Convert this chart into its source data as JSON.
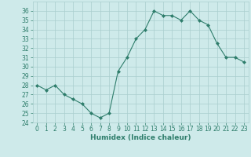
{
  "x": [
    0,
    1,
    2,
    3,
    4,
    5,
    6,
    7,
    8,
    9,
    10,
    11,
    12,
    13,
    14,
    15,
    16,
    17,
    18,
    19,
    20,
    21,
    22,
    23
  ],
  "y": [
    28,
    27.5,
    28,
    27,
    26.5,
    26,
    25,
    24.5,
    25,
    29.5,
    31,
    33,
    34,
    36,
    35.5,
    35.5,
    35,
    36,
    35,
    34.5,
    32.5,
    31,
    31,
    30.5
  ],
  "line_color": "#2e7d6b",
  "marker_color": "#2e7d6b",
  "bg_color": "#ceeaea",
  "grid_color": "#aacece",
  "xlabel": "Humidex (Indice chaleur)",
  "ylim": [
    24,
    37
  ],
  "xlim": [
    -0.5,
    23.5
  ],
  "yticks": [
    24,
    25,
    26,
    27,
    28,
    29,
    30,
    31,
    32,
    33,
    34,
    35,
    36
  ],
  "xticks": [
    0,
    1,
    2,
    3,
    4,
    5,
    6,
    7,
    8,
    9,
    10,
    11,
    12,
    13,
    14,
    15,
    16,
    17,
    18,
    19,
    20,
    21,
    22,
    23
  ],
  "tick_color": "#2e7d6b",
  "label_color": "#2e7d6b",
  "tick_fontsize": 5.5,
  "xlabel_fontsize": 6.5
}
